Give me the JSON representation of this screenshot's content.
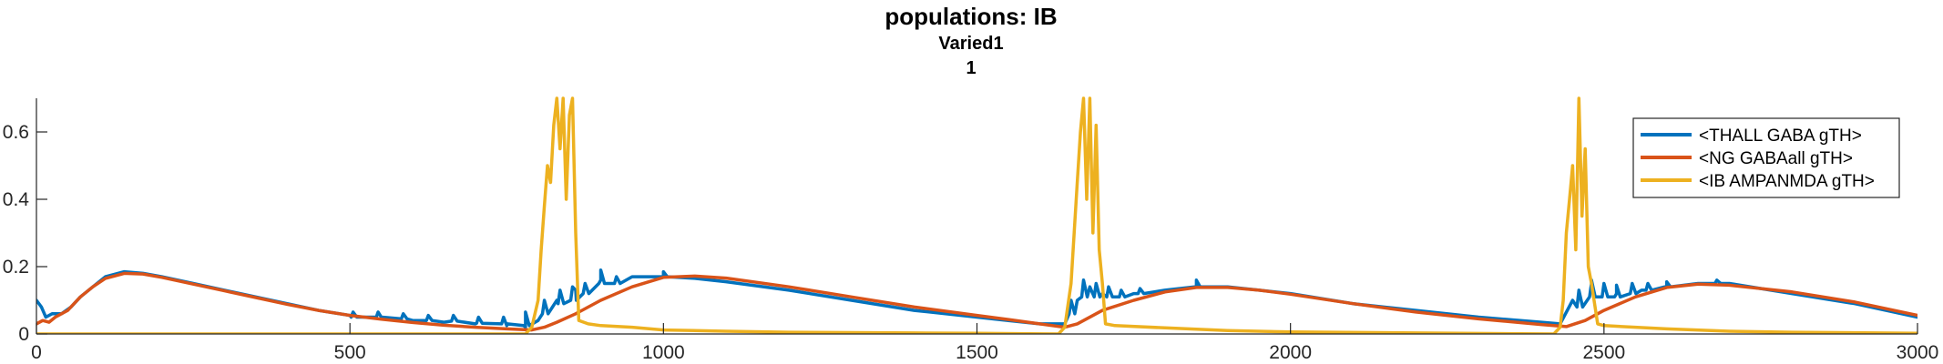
{
  "chart_data": {
    "type": "line",
    "title": "populations: IB",
    "subtitle_lines": [
      "Varied1",
      "1"
    ],
    "xlabel": "",
    "ylabel": "",
    "xlim": [
      0,
      3000
    ],
    "ylim": [
      0,
      0.7
    ],
    "x_ticks": [
      0,
      500,
      1000,
      1500,
      2000,
      2500,
      3000
    ],
    "x_tick_labels": [
      "0",
      "500",
      "1000",
      "1500",
      "2000",
      "2500",
      "3000"
    ],
    "y_ticks": [
      0,
      0.2,
      0.4,
      0.6
    ],
    "y_tick_labels": [
      "0",
      "0.2",
      "0.4",
      "0.6"
    ],
    "grid": false,
    "legend_position": "top-right",
    "series": [
      {
        "name": "<THALL GABA gTH>",
        "color": "#0072BD",
        "points": [
          [
            0,
            0.1
          ],
          [
            8,
            0.08
          ],
          [
            15,
            0.05
          ],
          [
            25,
            0.06
          ],
          [
            40,
            0.06
          ],
          [
            55,
            0.08
          ],
          [
            70,
            0.11
          ],
          [
            90,
            0.14
          ],
          [
            110,
            0.17
          ],
          [
            140,
            0.185
          ],
          [
            170,
            0.18
          ],
          [
            200,
            0.17
          ],
          [
            250,
            0.15
          ],
          [
            300,
            0.13
          ],
          [
            350,
            0.11
          ],
          [
            400,
            0.09
          ],
          [
            450,
            0.07
          ],
          [
            500,
            0.055
          ],
          [
            550,
            0.05
          ],
          [
            600,
            0.04
          ],
          [
            650,
            0.035
          ],
          [
            700,
            0.03
          ],
          [
            750,
            0.025
          ],
          [
            780,
            0.02
          ],
          [
            800,
            0.04
          ],
          [
            830,
            0.1
          ],
          [
            860,
            0.13
          ],
          [
            900,
            0.16
          ],
          [
            950,
            0.17
          ],
          [
            1000,
            0.17
          ],
          [
            1050,
            0.165
          ],
          [
            1100,
            0.155
          ],
          [
            1200,
            0.13
          ],
          [
            1300,
            0.1
          ],
          [
            1400,
            0.07
          ],
          [
            1500,
            0.05
          ],
          [
            1550,
            0.04
          ],
          [
            1600,
            0.03
          ],
          [
            1640,
            0.03
          ],
          [
            1660,
            0.1
          ],
          [
            1680,
            0.14
          ],
          [
            1700,
            0.12
          ],
          [
            1750,
            0.12
          ],
          [
            1800,
            0.13
          ],
          [
            1850,
            0.14
          ],
          [
            1900,
            0.14
          ],
          [
            1950,
            0.13
          ],
          [
            2000,
            0.12
          ],
          [
            2100,
            0.09
          ],
          [
            2200,
            0.07
          ],
          [
            2300,
            0.05
          ],
          [
            2400,
            0.035
          ],
          [
            2430,
            0.03
          ],
          [
            2450,
            0.1
          ],
          [
            2480,
            0.15
          ],
          [
            2520,
            0.12
          ],
          [
            2560,
            0.13
          ],
          [
            2600,
            0.14
          ],
          [
            2650,
            0.15
          ],
          [
            2700,
            0.15
          ],
          [
            2800,
            0.12
          ],
          [
            2900,
            0.09
          ],
          [
            3000,
            0.05
          ]
        ],
        "spikes": [
          [
            505,
            0.065,
            0.05
          ],
          [
            545,
            0.065,
            0.05
          ],
          [
            585,
            0.06,
            0.045
          ],
          [
            625,
            0.055,
            0.04
          ],
          [
            665,
            0.055,
            0.038
          ],
          [
            705,
            0.05,
            0.032
          ],
          [
            745,
            0.05,
            0.03
          ],
          [
            780,
            0.065,
            0.025
          ],
          [
            810,
            0.1,
            0.06
          ],
          [
            835,
            0.13,
            0.09
          ],
          [
            855,
            0.14,
            0.1
          ],
          [
            875,
            0.15,
            0.12
          ],
          [
            900,
            0.19,
            0.15
          ],
          [
            925,
            0.17,
            0.15
          ],
          [
            1000,
            0.185,
            0.17
          ],
          [
            1650,
            0.1,
            0.06
          ],
          [
            1670,
            0.16,
            0.11
          ],
          [
            1690,
            0.15,
            0.11
          ],
          [
            1710,
            0.14,
            0.11
          ],
          [
            1730,
            0.13,
            0.11
          ],
          [
            1760,
            0.135,
            0.12
          ],
          [
            1850,
            0.16,
            0.14
          ],
          [
            2460,
            0.13,
            0.08
          ],
          [
            2480,
            0.16,
            0.11
          ],
          [
            2500,
            0.15,
            0.11
          ],
          [
            2520,
            0.145,
            0.11
          ],
          [
            2545,
            0.15,
            0.12
          ],
          [
            2570,
            0.15,
            0.13
          ],
          [
            2600,
            0.155,
            0.14
          ],
          [
            2680,
            0.16,
            0.15
          ]
        ]
      },
      {
        "name": "<NG GABAall gTH>",
        "color": "#D95319",
        "points": [
          [
            0,
            0.03
          ],
          [
            10,
            0.04
          ],
          [
            20,
            0.035
          ],
          [
            30,
            0.05
          ],
          [
            50,
            0.07
          ],
          [
            70,
            0.11
          ],
          [
            90,
            0.14
          ],
          [
            110,
            0.165
          ],
          [
            140,
            0.18
          ],
          [
            170,
            0.178
          ],
          [
            200,
            0.168
          ],
          [
            250,
            0.148
          ],
          [
            300,
            0.128
          ],
          [
            350,
            0.108
          ],
          [
            400,
            0.088
          ],
          [
            450,
            0.07
          ],
          [
            500,
            0.055
          ],
          [
            550,
            0.044
          ],
          [
            600,
            0.034
          ],
          [
            650,
            0.026
          ],
          [
            700,
            0.02
          ],
          [
            750,
            0.015
          ],
          [
            790,
            0.012
          ],
          [
            810,
            0.02
          ],
          [
            830,
            0.035
          ],
          [
            860,
            0.06
          ],
          [
            900,
            0.1
          ],
          [
            950,
            0.14
          ],
          [
            1000,
            0.168
          ],
          [
            1050,
            0.172
          ],
          [
            1100,
            0.166
          ],
          [
            1200,
            0.14
          ],
          [
            1300,
            0.11
          ],
          [
            1400,
            0.08
          ],
          [
            1500,
            0.055
          ],
          [
            1550,
            0.043
          ],
          [
            1600,
            0.03
          ],
          [
            1640,
            0.02
          ],
          [
            1660,
            0.03
          ],
          [
            1700,
            0.07
          ],
          [
            1750,
            0.1
          ],
          [
            1800,
            0.125
          ],
          [
            1850,
            0.138
          ],
          [
            1900,
            0.138
          ],
          [
            1950,
            0.13
          ],
          [
            2000,
            0.118
          ],
          [
            2100,
            0.09
          ],
          [
            2200,
            0.065
          ],
          [
            2300,
            0.045
          ],
          [
            2400,
            0.028
          ],
          [
            2440,
            0.022
          ],
          [
            2470,
            0.04
          ],
          [
            2500,
            0.07
          ],
          [
            2550,
            0.11
          ],
          [
            2600,
            0.138
          ],
          [
            2650,
            0.148
          ],
          [
            2700,
            0.145
          ],
          [
            2800,
            0.125
          ],
          [
            2900,
            0.095
          ],
          [
            3000,
            0.055
          ]
        ],
        "spikes": []
      },
      {
        "name": "<IB AMPANMDA gTH>",
        "color": "#EDB120",
        "points": [
          [
            0,
            0.0
          ],
          [
            780,
            0.0
          ],
          [
            790,
            0.02
          ],
          [
            800,
            0.1
          ],
          [
            805,
            0.25
          ],
          [
            810,
            0.38
          ],
          [
            815,
            0.5
          ],
          [
            820,
            0.45
          ],
          [
            825,
            0.62
          ],
          [
            830,
            0.7
          ],
          [
            835,
            0.55
          ],
          [
            840,
            0.7
          ],
          [
            845,
            0.4
          ],
          [
            850,
            0.65
          ],
          [
            855,
            0.7
          ],
          [
            860,
            0.3
          ],
          [
            865,
            0.04
          ],
          [
            880,
            0.03
          ],
          [
            900,
            0.025
          ],
          [
            950,
            0.02
          ],
          [
            1000,
            0.012
          ],
          [
            1100,
            0.008
          ],
          [
            1200,
            0.005
          ],
          [
            1300,
            0.004
          ],
          [
            1400,
            0.003
          ],
          [
            1500,
            0.002
          ],
          [
            1630,
            0.0
          ],
          [
            1640,
            0.02
          ],
          [
            1650,
            0.15
          ],
          [
            1655,
            0.3
          ],
          [
            1660,
            0.45
          ],
          [
            1665,
            0.6
          ],
          [
            1670,
            0.7
          ],
          [
            1675,
            0.4
          ],
          [
            1680,
            0.7
          ],
          [
            1685,
            0.3
          ],
          [
            1690,
            0.62
          ],
          [
            1695,
            0.25
          ],
          [
            1700,
            0.15
          ],
          [
            1705,
            0.03
          ],
          [
            1720,
            0.025
          ],
          [
            1800,
            0.018
          ],
          [
            1900,
            0.01
          ],
          [
            2000,
            0.006
          ],
          [
            2200,
            0.003
          ],
          [
            2420,
            0.0
          ],
          [
            2430,
            0.02
          ],
          [
            2435,
            0.1
          ],
          [
            2440,
            0.3
          ],
          [
            2445,
            0.4
          ],
          [
            2450,
            0.5
          ],
          [
            2455,
            0.25
          ],
          [
            2460,
            0.7
          ],
          [
            2465,
            0.35
          ],
          [
            2470,
            0.55
          ],
          [
            2475,
            0.2
          ],
          [
            2480,
            0.15
          ],
          [
            2490,
            0.03
          ],
          [
            2500,
            0.025
          ],
          [
            2600,
            0.015
          ],
          [
            2700,
            0.008
          ],
          [
            2800,
            0.005
          ],
          [
            3000,
            0.002
          ]
        ],
        "spikes": []
      }
    ]
  }
}
